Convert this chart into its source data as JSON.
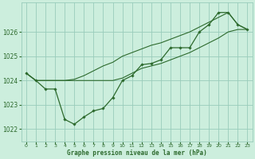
{
  "hours": [
    0,
    1,
    2,
    3,
    4,
    5,
    6,
    7,
    8,
    9,
    10,
    11,
    12,
    13,
    14,
    15,
    16,
    17,
    18,
    19,
    20,
    21,
    22,
    23
  ],
  "main_line": [
    1024.3,
    1024.0,
    1023.65,
    1023.65,
    1022.4,
    1022.2,
    1022.5,
    1022.75,
    1022.85,
    1023.3,
    1024.0,
    1024.2,
    1024.65,
    1024.7,
    1024.85,
    1025.35,
    1025.35,
    1025.35,
    1026.0,
    1026.3,
    1026.8,
    1026.8,
    1026.3,
    1026.1
  ],
  "upper_line": [
    1024.3,
    1024.0,
    1024.0,
    1024.0,
    1024.0,
    1024.05,
    1024.2,
    1024.4,
    1024.6,
    1024.75,
    1025.0,
    1025.15,
    1025.3,
    1025.45,
    1025.55,
    1025.7,
    1025.85,
    1026.0,
    1026.2,
    1026.4,
    1026.6,
    1026.8,
    1026.3,
    1026.1
  ],
  "lower_line": [
    1024.3,
    1024.0,
    1024.0,
    1024.0,
    1024.0,
    1024.0,
    1024.0,
    1024.0,
    1024.0,
    1024.0,
    1024.1,
    1024.3,
    1024.5,
    1024.6,
    1024.7,
    1024.85,
    1025.0,
    1025.15,
    1025.35,
    1025.55,
    1025.75,
    1026.0,
    1026.1,
    1026.1
  ],
  "line_color": "#2d6a2d",
  "bg_color": "#cceedd",
  "grid_color": "#99ccbb",
  "xlabel": "Graphe pression niveau de la mer (hPa)",
  "ylim": [
    1021.5,
    1027.2
  ],
  "xlim": [
    -0.5,
    23.5
  ],
  "yticks": [
    1022,
    1023,
    1024,
    1025,
    1026
  ],
  "xticks": [
    0,
    1,
    2,
    3,
    4,
    5,
    6,
    7,
    8,
    9,
    10,
    11,
    12,
    13,
    14,
    15,
    16,
    17,
    18,
    19,
    20,
    21,
    22,
    23
  ]
}
